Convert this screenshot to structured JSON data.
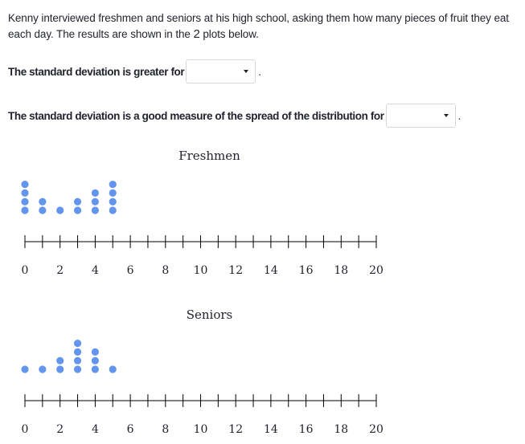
{
  "intro": {
    "before": "Kenny interviewed freshmen and seniors at his high school, asking them how many pieces of fruit they eat each day. The results are shown in the ",
    "count": "2",
    "after": " plots below."
  },
  "questions": {
    "q1": {
      "prefix": "The standard deviation is greater for",
      "selected": "",
      "suffix": "."
    },
    "q2": {
      "prefix": "The standard deviation is a good measure of the spread of the distribution for",
      "selected": "",
      "suffix": "."
    }
  },
  "icons": {
    "dropdown": "caret-down-icon"
  },
  "colors": {
    "dot": "#6495ed",
    "axis": "#000000"
  },
  "chart_data": [
    {
      "type": "dotplot",
      "title": "Freshmen",
      "xlim": [
        0,
        20
      ],
      "ticks": [
        0,
        1,
        2,
        3,
        4,
        5,
        6,
        7,
        8,
        9,
        10,
        11,
        12,
        13,
        14,
        15,
        16,
        17,
        18,
        19,
        20
      ],
      "tick_labels": [
        0,
        2,
        4,
        6,
        8,
        10,
        12,
        14,
        16,
        18,
        20
      ],
      "points": [
        {
          "x": 0,
          "count": 4
        },
        {
          "x": 1,
          "count": 2
        },
        {
          "x": 2,
          "count": 1
        },
        {
          "x": 3,
          "count": 2
        },
        {
          "x": 4,
          "count": 3
        },
        {
          "x": 5,
          "count": 4
        }
      ]
    },
    {
      "type": "dotplot",
      "title": "Seniors",
      "xlim": [
        0,
        20
      ],
      "ticks": [
        0,
        1,
        2,
        3,
        4,
        5,
        6,
        7,
        8,
        9,
        10,
        11,
        12,
        13,
        14,
        15,
        16,
        17,
        18,
        19,
        20
      ],
      "tick_labels": [
        0,
        2,
        4,
        6,
        8,
        10,
        12,
        14,
        16,
        18,
        20
      ],
      "points": [
        {
          "x": 0,
          "count": 1
        },
        {
          "x": 1,
          "count": 1
        },
        {
          "x": 2,
          "count": 2
        },
        {
          "x": 3,
          "count": 4
        },
        {
          "x": 4,
          "count": 3
        },
        {
          "x": 5,
          "count": 1
        }
      ]
    }
  ]
}
